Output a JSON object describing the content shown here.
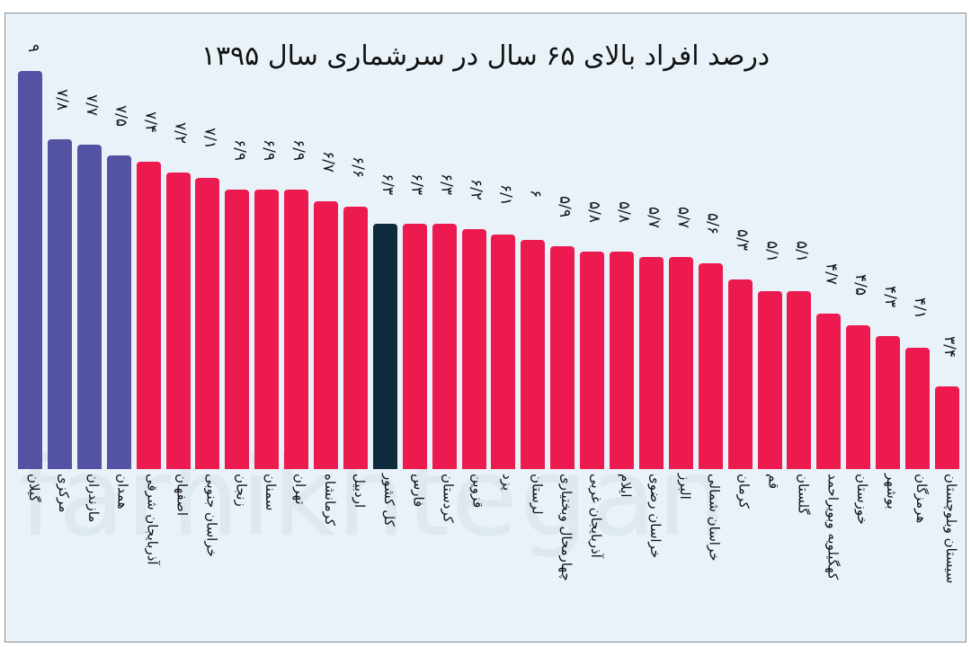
{
  "chart_data": {
    "type": "bar",
    "title": "درصد افراد بالای ۶۵ سال در سرشماری سال ۱۳۹۵",
    "xlabel": "",
    "ylabel": "",
    "grid": false,
    "legend": null,
    "categories": [
      "گیلان",
      "مرکزی",
      "مازندران",
      "همدان",
      "آذربایجان شرقی",
      "اصفهان",
      "خراسان جنوبی",
      "زنجان",
      "سمنان",
      "تهران",
      "کرمانشاه",
      "اردبیل",
      "کل کشور",
      "فارس",
      "کردستان",
      "قزوین",
      "یزد",
      "لرستان",
      "چهارمحال وبختیاری",
      "آذربایجان غربی",
      "ایلام",
      "خراسان رضوی",
      "البرز",
      "خراسان شمالی",
      "کرمان",
      "قم",
      "گلستان",
      "کهگیلویه وبویراحمد",
      "خوزستان",
      "بوشهر",
      "هرمزگان",
      "سیستان وبلوچستان"
    ],
    "values": [
      9,
      7.8,
      7.7,
      7.5,
      7.4,
      7.2,
      7.1,
      6.9,
      6.9,
      6.9,
      6.7,
      6.6,
      6.3,
      6.3,
      6.3,
      6.2,
      6.1,
      6,
      5.9,
      5.8,
      5.8,
      5.7,
      5.7,
      5.6,
      5.3,
      5.1,
      5.1,
      4.7,
      4.5,
      4.3,
      4.1,
      3.4
    ],
    "value_labels": [
      "۹",
      "۷/۸",
      "۷/۷",
      "۷/۵",
      "۷/۴",
      "۷/۲",
      "۷/۱",
      "۶/۹",
      "۶/۹",
      "۶/۹",
      "۶/۷",
      "۶/۶",
      "۶/۳",
      "۶/۳",
      "۶/۳",
      "۶/۲",
      "۶/۱",
      "۶",
      "۵/۹",
      "۵/۸",
      "۵/۸",
      "۵/۷",
      "۵/۷",
      "۵/۶",
      "۵/۳",
      "۵/۱",
      "۵/۱",
      "۴/۷",
      "۴/۵",
      "۴/۳",
      "۴/۱",
      "۳/۴"
    ],
    "bar_groups": [
      "top",
      "top",
      "top",
      "top",
      "province",
      "province",
      "province",
      "province",
      "province",
      "province",
      "province",
      "province",
      "national",
      "province",
      "province",
      "province",
      "province",
      "province",
      "province",
      "province",
      "province",
      "province",
      "province",
      "province",
      "province",
      "province",
      "province",
      "province",
      "province",
      "province",
      "province",
      "province"
    ],
    "colors": {
      "top": "#5352a3",
      "province": "#ec1a4f",
      "national": "#0e2a3d"
    }
  },
  "watermark": "farhikhtegan"
}
